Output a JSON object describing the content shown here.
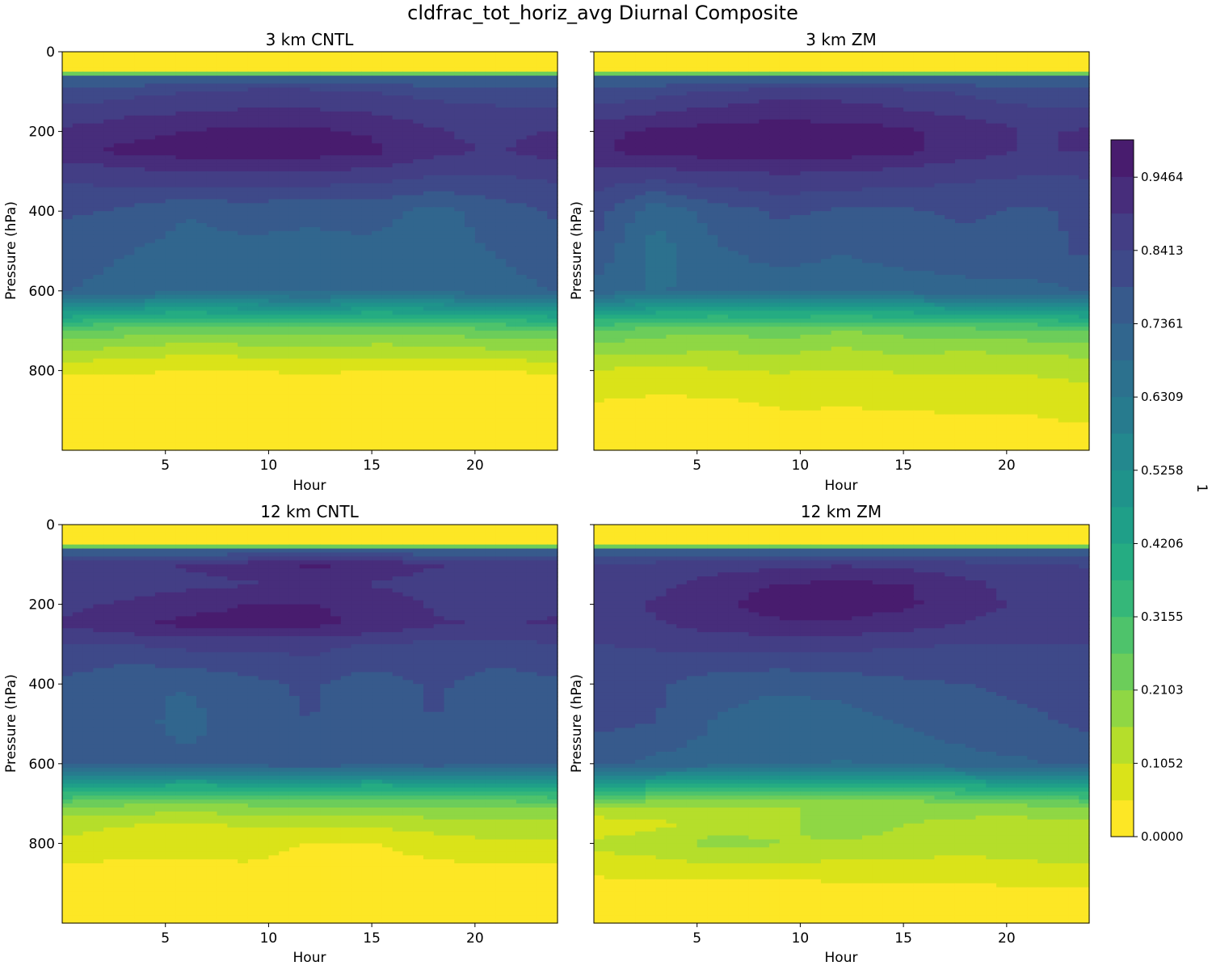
{
  "figure_title": "cldfrac_tot_horiz_avg Diurnal Composite",
  "colorbar": {
    "label": "1",
    "tick_labels": [
      "0.0000",
      "0.1052",
      "0.2103",
      "0.3155",
      "0.4206",
      "0.5258",
      "0.6309",
      "0.7361",
      "0.8413",
      "0.9464"
    ],
    "tick_values": [
      0.0,
      0.1052,
      0.2103,
      0.3155,
      0.4206,
      0.5258,
      0.6309,
      0.7361,
      0.8413,
      0.9464
    ],
    "vmin": 0.0,
    "vmax": 1.0,
    "levels": 19,
    "colormap": "viridis (reversed)"
  },
  "chart_data": [
    {
      "type": "heatmap",
      "title": "3 km CNTL",
      "xlabel": "Hour",
      "ylabel": "Pressure (hPa)",
      "xlim": [
        0,
        24
      ],
      "ylim": [
        1000,
        0
      ],
      "xticks": [
        "5",
        "10",
        "15",
        "20"
      ],
      "yticks": [
        "0",
        "200",
        "400",
        "600",
        "800"
      ],
      "x": [
        0,
        3,
        6,
        9,
        12,
        15,
        18,
        21,
        24
      ],
      "y": [
        0,
        50,
        65,
        100,
        150,
        200,
        250,
        300,
        400,
        500,
        600,
        650,
        700,
        750,
        800,
        900,
        1000
      ],
      "z": [
        [
          0.0,
          0.0,
          0.0,
          0.0,
          0.0,
          0.0,
          0.0,
          0.0,
          0.0
        ],
        [
          0.02,
          0.02,
          0.02,
          0.02,
          0.02,
          0.02,
          0.02,
          0.02,
          0.02
        ],
        [
          0.74,
          0.74,
          0.74,
          0.74,
          0.74,
          0.74,
          0.74,
          0.74,
          0.74
        ],
        [
          0.8,
          0.82,
          0.84,
          0.86,
          0.86,
          0.84,
          0.82,
          0.8,
          0.8
        ],
        [
          0.86,
          0.88,
          0.89,
          0.9,
          0.9,
          0.89,
          0.87,
          0.86,
          0.86
        ],
        [
          0.9,
          0.93,
          0.95,
          0.96,
          0.96,
          0.94,
          0.9,
          0.88,
          0.9
        ],
        [
          0.93,
          0.96,
          0.97,
          0.97,
          0.97,
          0.96,
          0.91,
          0.89,
          0.92
        ],
        [
          0.86,
          0.88,
          0.9,
          0.9,
          0.9,
          0.88,
          0.86,
          0.85,
          0.86
        ],
        [
          0.8,
          0.78,
          0.74,
          0.76,
          0.74,
          0.76,
          0.72,
          0.76,
          0.8
        ],
        [
          0.76,
          0.74,
          0.72,
          0.72,
          0.73,
          0.72,
          0.71,
          0.74,
          0.76
        ],
        [
          0.74,
          0.72,
          0.7,
          0.7,
          0.71,
          0.7,
          0.7,
          0.72,
          0.74
        ],
        [
          0.5,
          0.45,
          0.44,
          0.45,
          0.46,
          0.44,
          0.45,
          0.46,
          0.5
        ],
        [
          0.26,
          0.24,
          0.22,
          0.23,
          0.24,
          0.22,
          0.23,
          0.25,
          0.26
        ],
        [
          0.16,
          0.14,
          0.12,
          0.13,
          0.14,
          0.13,
          0.13,
          0.15,
          0.16
        ],
        [
          0.06,
          0.06,
          0.05,
          0.05,
          0.06,
          0.05,
          0.05,
          0.05,
          0.06
        ],
        [
          0.01,
          0.01,
          0.01,
          0.01,
          0.01,
          0.01,
          0.01,
          0.01,
          0.01
        ],
        [
          0.0,
          0.0,
          0.0,
          0.0,
          0.0,
          0.0,
          0.0,
          0.0,
          0.0
        ]
      ]
    },
    {
      "type": "heatmap",
      "title": "3 km ZM",
      "xlabel": "Hour",
      "ylabel": "Pressure (hPa)",
      "xlim": [
        0,
        24
      ],
      "ylim": [
        1000,
        0
      ],
      "xticks": [
        "5",
        "10",
        "15",
        "20"
      ],
      "yticks": [],
      "x": [
        0,
        3,
        6,
        9,
        12,
        15,
        18,
        21,
        24
      ],
      "y": [
        0,
        50,
        65,
        100,
        150,
        200,
        250,
        300,
        400,
        500,
        600,
        650,
        700,
        750,
        800,
        900,
        1000
      ],
      "z": [
        [
          0.0,
          0.0,
          0.0,
          0.0,
          0.0,
          0.0,
          0.0,
          0.0,
          0.0
        ],
        [
          0.02,
          0.02,
          0.02,
          0.02,
          0.02,
          0.02,
          0.02,
          0.02,
          0.02
        ],
        [
          0.74,
          0.74,
          0.74,
          0.74,
          0.74,
          0.74,
          0.74,
          0.74,
          0.74
        ],
        [
          0.8,
          0.82,
          0.85,
          0.87,
          0.87,
          0.86,
          0.83,
          0.8,
          0.8
        ],
        [
          0.86,
          0.89,
          0.91,
          0.93,
          0.92,
          0.9,
          0.88,
          0.86,
          0.86
        ],
        [
          0.93,
          0.96,
          0.97,
          0.97,
          0.97,
          0.96,
          0.93,
          0.89,
          0.9
        ],
        [
          0.94,
          0.97,
          0.97,
          0.97,
          0.97,
          0.96,
          0.92,
          0.89,
          0.9
        ],
        [
          0.88,
          0.88,
          0.9,
          0.9,
          0.9,
          0.88,
          0.86,
          0.85,
          0.85
        ],
        [
          0.82,
          0.7,
          0.76,
          0.8,
          0.78,
          0.78,
          0.8,
          0.78,
          0.8
        ],
        [
          0.78,
          0.66,
          0.73,
          0.76,
          0.74,
          0.76,
          0.77,
          0.77,
          0.8
        ],
        [
          0.72,
          0.68,
          0.7,
          0.71,
          0.7,
          0.71,
          0.72,
          0.72,
          0.74
        ],
        [
          0.48,
          0.44,
          0.43,
          0.44,
          0.42,
          0.44,
          0.45,
          0.46,
          0.5
        ],
        [
          0.26,
          0.23,
          0.22,
          0.24,
          0.21,
          0.23,
          0.24,
          0.25,
          0.26
        ],
        [
          0.18,
          0.17,
          0.16,
          0.17,
          0.15,
          0.17,
          0.16,
          0.17,
          0.18
        ],
        [
          0.1,
          0.09,
          0.1,
          0.11,
          0.1,
          0.11,
          0.11,
          0.11,
          0.12
        ],
        [
          0.04,
          0.03,
          0.03,
          0.05,
          0.05,
          0.05,
          0.06,
          0.06,
          0.08
        ],
        [
          0.0,
          0.0,
          0.0,
          0.0,
          0.0,
          0.0,
          0.0,
          0.0,
          0.0
        ]
      ]
    },
    {
      "type": "heatmap",
      "title": "12 km CNTL",
      "xlabel": "Hour",
      "ylabel": "Pressure (hPa)",
      "xlim": [
        0,
        24
      ],
      "ylim": [
        1000,
        0
      ],
      "xticks": [
        "5",
        "10",
        "15",
        "20"
      ],
      "yticks": [
        "0",
        "200",
        "400",
        "600",
        "800"
      ],
      "x": [
        0,
        3,
        6,
        9,
        12,
        15,
        18,
        21,
        24
      ],
      "y": [
        0,
        50,
        65,
        100,
        150,
        200,
        250,
        300,
        400,
        500,
        600,
        650,
        700,
        750,
        800,
        900,
        1000
      ],
      "z": [
        [
          0.0,
          0.0,
          0.0,
          0.0,
          0.0,
          0.0,
          0.0,
          0.0,
          0.0
        ],
        [
          0.02,
          0.02,
          0.02,
          0.02,
          0.02,
          0.02,
          0.02,
          0.02,
          0.02
        ],
        [
          0.74,
          0.74,
          0.74,
          0.74,
          0.74,
          0.74,
          0.74,
          0.74,
          0.74
        ],
        [
          0.86,
          0.88,
          0.9,
          0.92,
          0.96,
          0.94,
          0.9,
          0.88,
          0.86
        ],
        [
          0.86,
          0.87,
          0.88,
          0.89,
          0.9,
          0.89,
          0.87,
          0.86,
          0.86
        ],
        [
          0.88,
          0.9,
          0.93,
          0.95,
          0.95,
          0.93,
          0.89,
          0.88,
          0.89
        ],
        [
          0.9,
          0.94,
          0.96,
          0.96,
          0.96,
          0.94,
          0.9,
          0.89,
          0.9
        ],
        [
          0.84,
          0.84,
          0.86,
          0.86,
          0.86,
          0.84,
          0.83,
          0.83,
          0.84
        ],
        [
          0.78,
          0.74,
          0.74,
          0.77,
          0.8,
          0.76,
          0.8,
          0.76,
          0.78
        ],
        [
          0.76,
          0.76,
          0.72,
          0.76,
          0.79,
          0.74,
          0.79,
          0.75,
          0.76
        ],
        [
          0.76,
          0.76,
          0.75,
          0.76,
          0.78,
          0.76,
          0.77,
          0.76,
          0.76
        ],
        [
          0.5,
          0.46,
          0.44,
          0.45,
          0.46,
          0.44,
          0.45,
          0.46,
          0.5
        ],
        [
          0.24,
          0.22,
          0.2,
          0.22,
          0.24,
          0.22,
          0.23,
          0.24,
          0.24
        ],
        [
          0.12,
          0.11,
          0.1,
          0.11,
          0.12,
          0.12,
          0.13,
          0.14,
          0.14
        ],
        [
          0.1,
          0.08,
          0.08,
          0.09,
          0.05,
          0.05,
          0.08,
          0.1,
          0.1
        ],
        [
          0.01,
          0.01,
          0.01,
          0.01,
          0.01,
          0.01,
          0.01,
          0.01,
          0.01
        ],
        [
          0.0,
          0.0,
          0.0,
          0.0,
          0.0,
          0.0,
          0.0,
          0.0,
          0.0
        ]
      ]
    },
    {
      "type": "heatmap",
      "title": "12 km ZM",
      "xlabel": "Hour",
      "ylabel": "Pressure (hPa)",
      "xlim": [
        0,
        24
      ],
      "ylim": [
        1000,
        0
      ],
      "xticks": [
        "5",
        "10",
        "15",
        "20"
      ],
      "yticks": [],
      "x": [
        0,
        3,
        6,
        9,
        12,
        15,
        18,
        21,
        24
      ],
      "y": [
        0,
        50,
        65,
        100,
        150,
        200,
        250,
        300,
        400,
        500,
        600,
        650,
        700,
        750,
        800,
        900,
        1000
      ],
      "z": [
        [
          0.0,
          0.0,
          0.0,
          0.0,
          0.0,
          0.0,
          0.0,
          0.0,
          0.0
        ],
        [
          0.02,
          0.02,
          0.02,
          0.02,
          0.02,
          0.02,
          0.02,
          0.02,
          0.02
        ],
        [
          0.74,
          0.74,
          0.74,
          0.74,
          0.74,
          0.74,
          0.74,
          0.74,
          0.74
        ],
        [
          0.84,
          0.86,
          0.87,
          0.88,
          0.89,
          0.88,
          0.86,
          0.84,
          0.84
        ],
        [
          0.86,
          0.88,
          0.92,
          0.95,
          0.96,
          0.95,
          0.91,
          0.87,
          0.86
        ],
        [
          0.88,
          0.9,
          0.94,
          0.97,
          0.97,
          0.96,
          0.92,
          0.88,
          0.88
        ],
        [
          0.88,
          0.89,
          0.92,
          0.94,
          0.94,
          0.92,
          0.89,
          0.88,
          0.88
        ],
        [
          0.84,
          0.85,
          0.86,
          0.86,
          0.86,
          0.85,
          0.84,
          0.84,
          0.84
        ],
        [
          0.82,
          0.8,
          0.76,
          0.75,
          0.76,
          0.78,
          0.79,
          0.8,
          0.8
        ],
        [
          0.8,
          0.79,
          0.73,
          0.7,
          0.71,
          0.74,
          0.76,
          0.78,
          0.8
        ],
        [
          0.76,
          0.72,
          0.71,
          0.7,
          0.68,
          0.7,
          0.72,
          0.73,
          0.76
        ],
        [
          0.48,
          0.44,
          0.43,
          0.42,
          0.4,
          0.42,
          0.44,
          0.46,
          0.5
        ],
        [
          0.2,
          0.18,
          0.17,
          0.16,
          0.16,
          0.18,
          0.2,
          0.22,
          0.24
        ],
        [
          0.06,
          0.09,
          0.12,
          0.14,
          0.19,
          0.16,
          0.14,
          0.13,
          0.14
        ],
        [
          0.12,
          0.14,
          0.18,
          0.16,
          0.15,
          0.14,
          0.13,
          0.14,
          0.16
        ],
        [
          0.04,
          0.04,
          0.04,
          0.04,
          0.05,
          0.05,
          0.05,
          0.06,
          0.06
        ],
        [
          0.0,
          0.0,
          0.0,
          0.0,
          0.0,
          0.0,
          0.0,
          0.0,
          0.0
        ]
      ]
    }
  ]
}
